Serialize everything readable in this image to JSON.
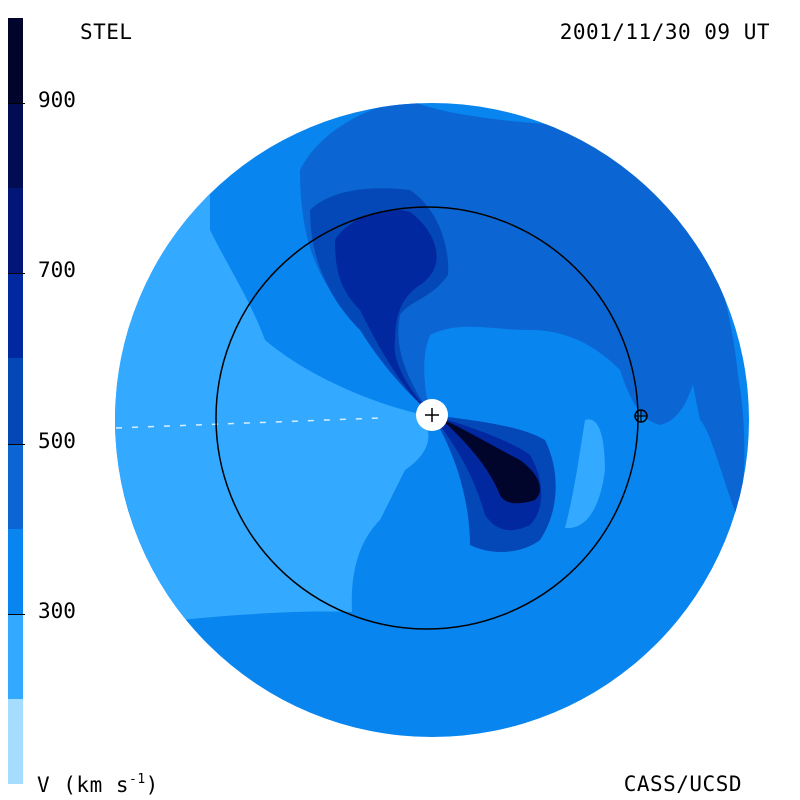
{
  "header": {
    "left": "STEL",
    "right": "2001/11/30 09 UT"
  },
  "footer": {
    "left": "V (km s",
    "left_sup": "-1",
    "left_close": ")",
    "right": "CASS/UCSD"
  },
  "chart_data": {
    "type": "heatmap",
    "title": "",
    "quantity": "V (km s-1)",
    "colorbar": {
      "range": [
        100,
        1000
      ],
      "tick_labels": [
        "300",
        "500",
        "700",
        "900"
      ],
      "levels": [
        {
          "from": 100,
          "to": 200,
          "color": "#a6dcff"
        },
        {
          "from": 200,
          "to": 300,
          "color": "#33aaff"
        },
        {
          "from": 300,
          "to": 400,
          "color": "#0885ee"
        },
        {
          "from": 400,
          "to": 500,
          "color": "#0b66d3"
        },
        {
          "from": 500,
          "to": 600,
          "color": "#0448b8"
        },
        {
          "from": 600,
          "to": 700,
          "color": "#02289f"
        },
        {
          "from": 700,
          "to": 800,
          "color": "#021677"
        },
        {
          "from": 800,
          "to": 900,
          "color": "#020c52"
        },
        {
          "from": 900,
          "to": 1000,
          "color": "#01052c"
        }
      ]
    },
    "markers": [
      {
        "name": "Sun",
        "symbol": "+"
      },
      {
        "name": "Earth",
        "symbol": "⊕"
      }
    ]
  }
}
